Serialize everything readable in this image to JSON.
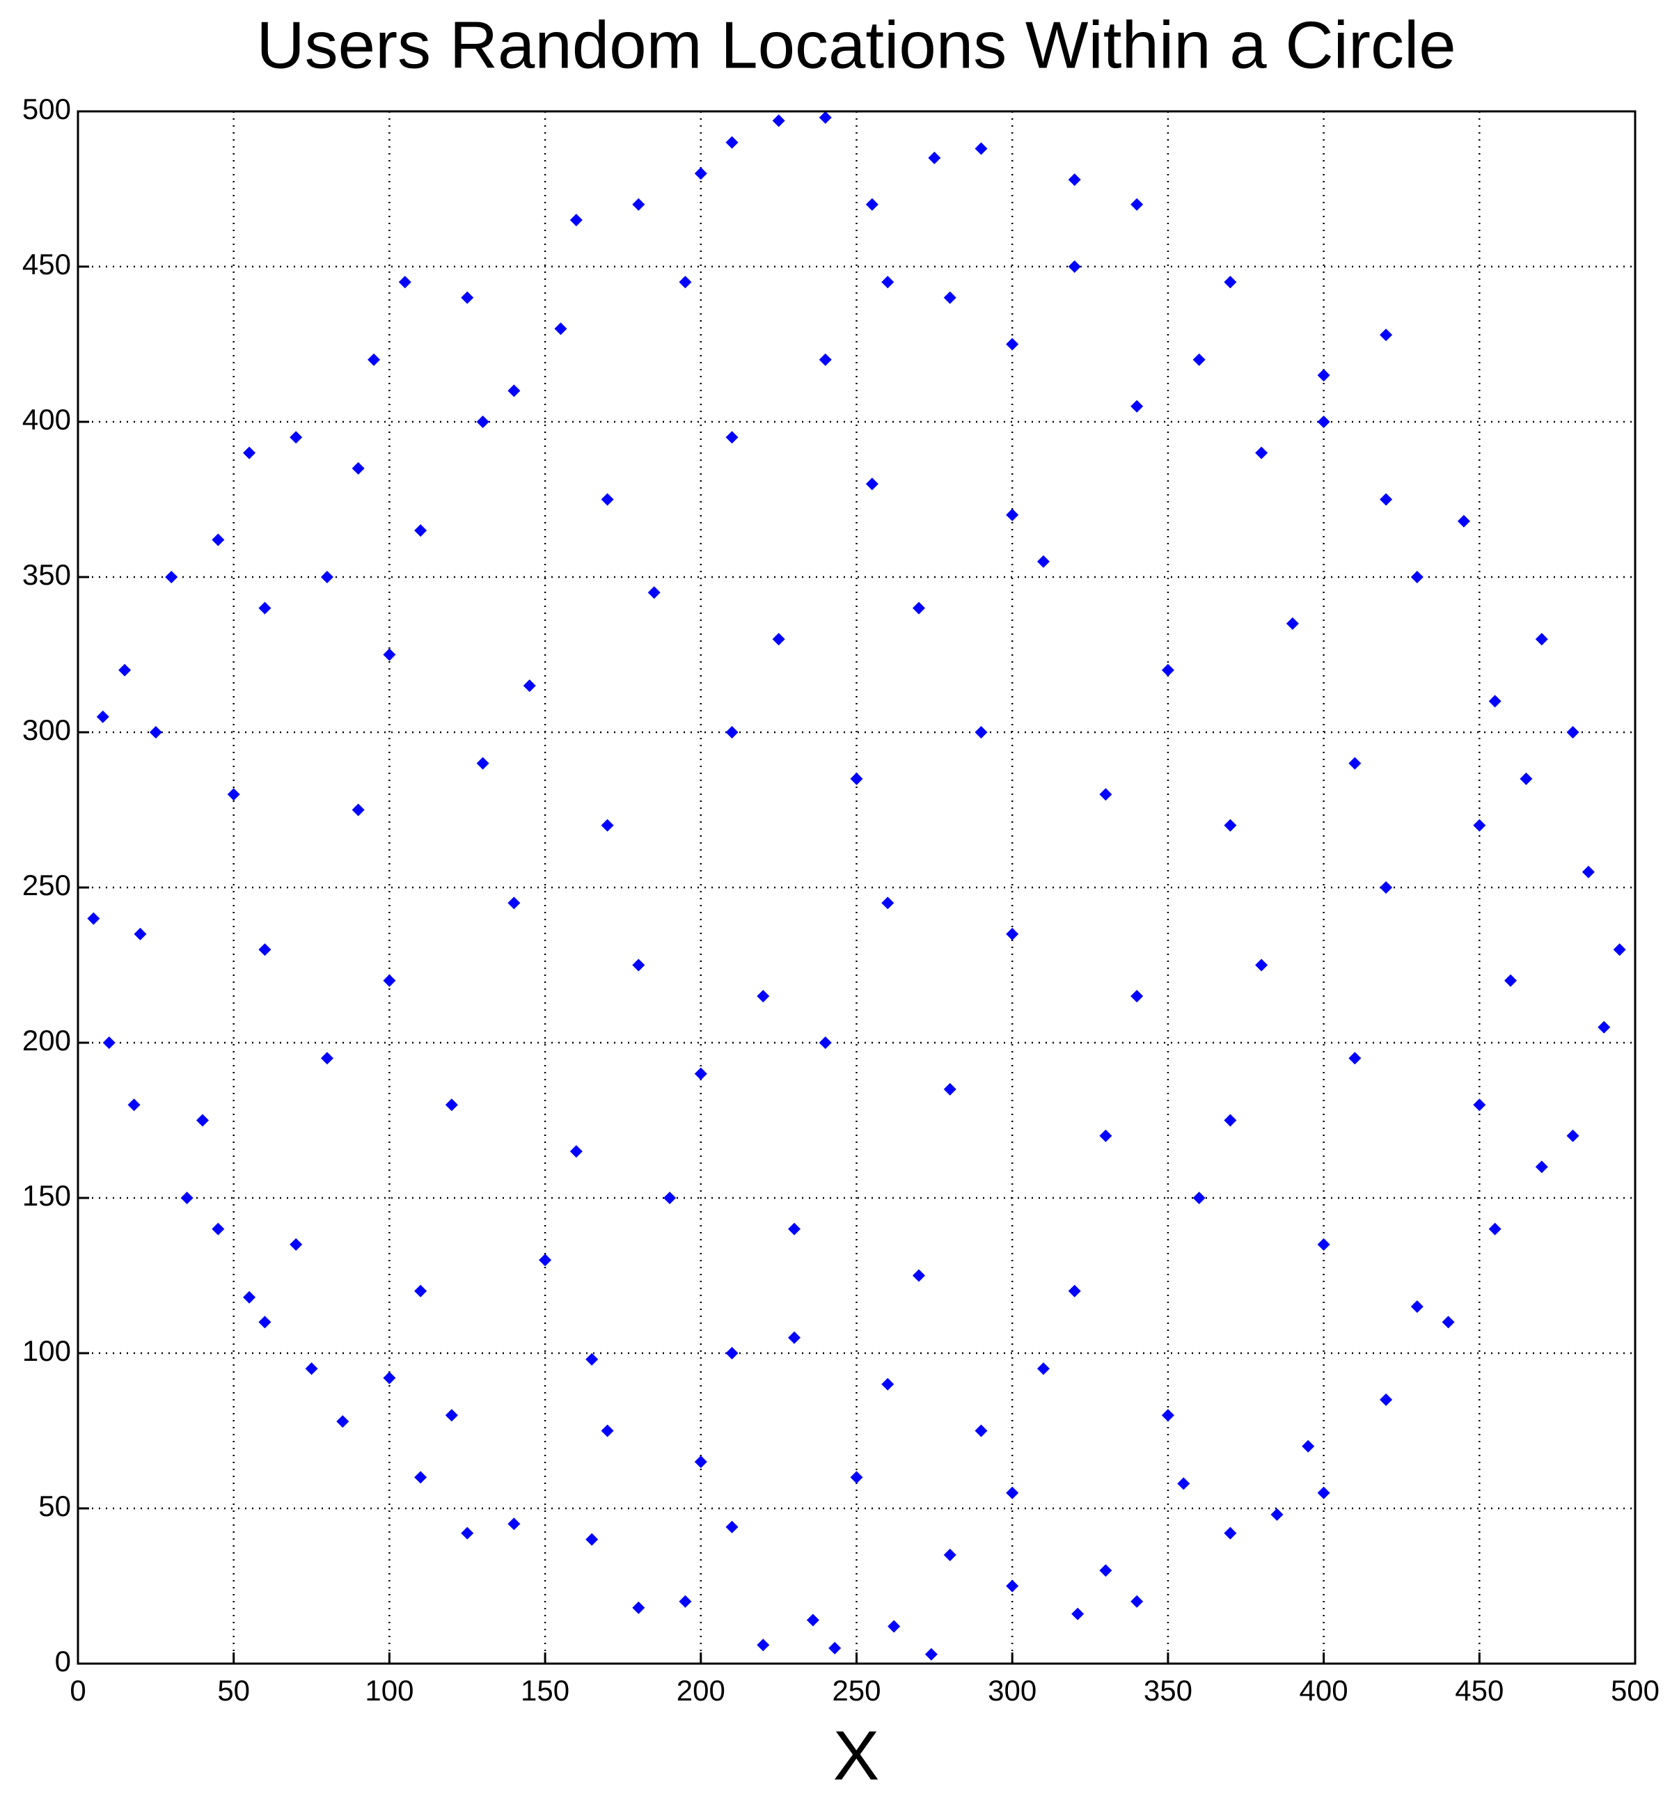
{
  "chart_data": {
    "type": "scatter",
    "title": "Users Random Locations Within a Circle",
    "xlabel": "X",
    "color": "#0000ff",
    "grid": true,
    "xlim": [
      0,
      500
    ],
    "ylim": [
      0,
      500
    ],
    "xticks": [
      0,
      50,
      100,
      150,
      200,
      250,
      300,
      350,
      400,
      450,
      500
    ],
    "yticks": [
      0,
      50,
      100,
      150,
      200,
      250,
      300,
      350,
      400,
      450,
      500
    ],
    "x": [
      243,
      274,
      220,
      262,
      236,
      321,
      195,
      180,
      300,
      340,
      165,
      210,
      280,
      330,
      370,
      140,
      125,
      355,
      385,
      110,
      200,
      250,
      300,
      170,
      400,
      85,
      75,
      120,
      165,
      210,
      260,
      310,
      350,
      395,
      420,
      60,
      100,
      440,
      230,
      290,
      45,
      35,
      70,
      110,
      150,
      190,
      230,
      270,
      320,
      360,
      400,
      430,
      455,
      470,
      55,
      18,
      10,
      40,
      80,
      120,
      160,
      200,
      240,
      280,
      330,
      370,
      410,
      450,
      480,
      490,
      5,
      20,
      60,
      100,
      140,
      180,
      220,
      260,
      300,
      340,
      380,
      420,
      460,
      495,
      485,
      8,
      25,
      50,
      90,
      130,
      170,
      210,
      250,
      290,
      330,
      370,
      410,
      450,
      480,
      465,
      30,
      15,
      60,
      100,
      145,
      185,
      225,
      270,
      310,
      350,
      390,
      430,
      470,
      455,
      80,
      45,
      55,
      90,
      130,
      170,
      210,
      255,
      300,
      340,
      380,
      420,
      445,
      400,
      110,
      70,
      95,
      125,
      155,
      195,
      240,
      280,
      320,
      360,
      400,
      420,
      105,
      140,
      300,
      260,
      160,
      200,
      240,
      225,
      275,
      320,
      340,
      290,
      180,
      370,
      210,
      255
    ],
    "values": [
      5,
      3,
      6,
      12,
      14,
      16,
      20,
      18,
      25,
      20,
      40,
      44,
      35,
      30,
      42,
      45,
      42,
      58,
      48,
      60,
      65,
      60,
      55,
      75,
      55,
      78,
      95,
      80,
      98,
      100,
      90,
      95,
      80,
      70,
      85,
      110,
      92,
      110,
      105,
      75,
      140,
      150,
      135,
      120,
      130,
      150,
      140,
      125,
      120,
      150,
      135,
      115,
      140,
      160,
      118,
      180,
      200,
      175,
      195,
      180,
      165,
      190,
      200,
      185,
      170,
      175,
      195,
      180,
      170,
      205,
      240,
      235,
      230,
      220,
      245,
      225,
      215,
      245,
      235,
      215,
      225,
      250,
      220,
      230,
      255,
      305,
      300,
      280,
      275,
      290,
      270,
      300,
      285,
      300,
      280,
      270,
      290,
      270,
      300,
      285,
      350,
      320,
      340,
      325,
      315,
      345,
      330,
      340,
      355,
      320,
      335,
      350,
      330,
      310,
      350,
      362,
      390,
      385,
      400,
      375,
      395,
      380,
      370,
      405,
      390,
      375,
      368,
      400,
      365,
      395,
      420,
      440,
      430,
      445,
      420,
      440,
      450,
      420,
      415,
      428,
      445,
      410,
      425,
      445,
      465,
      480,
      498,
      497,
      485,
      478,
      470,
      488,
      470,
      445,
      490,
      470
    ]
  }
}
